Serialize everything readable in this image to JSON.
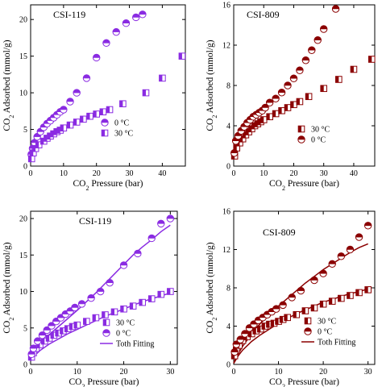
{
  "colors": {
    "purple": "#8A2BE2",
    "maroon": "#8B0000"
  },
  "chart_data": [
    {
      "type": "scatter",
      "title": "CSI-119",
      "xlabel": [
        "CO",
        "2",
        " Pressure (bar)"
      ],
      "ylabel": [
        "CO",
        "2",
        " Adsorbed (mmol/g)"
      ],
      "xlim": [
        0,
        47
      ],
      "ylim": [
        0,
        22
      ],
      "xticks": [
        0,
        10,
        20,
        30,
        40
      ],
      "yticks": [
        0,
        5,
        10,
        15,
        20
      ],
      "legend_position": "lower-right",
      "series": [
        {
          "name": "0 °C",
          "marker": "circle-half",
          "color": "#8A2BE2",
          "x": [
            0.2,
            0.6,
            1.2,
            2,
            3,
            4,
            5,
            6,
            7,
            8,
            9,
            10,
            12,
            14,
            17,
            20,
            23,
            26,
            29,
            32,
            34
          ],
          "y": [
            1.6,
            2.4,
            3.2,
            4.0,
            4.7,
            5.3,
            5.8,
            6.2,
            6.6,
            7.0,
            7.4,
            7.7,
            8.8,
            10.0,
            12.0,
            14.8,
            16.8,
            18.3,
            19.5,
            20.3,
            20.7
          ]
        },
        {
          "name": "30 °C",
          "marker": "square-half",
          "color": "#8A2BE2",
          "x": [
            0.3,
            0.8,
            1.5,
            2.5,
            4,
            5,
            6,
            7,
            8,
            9,
            10,
            12,
            14,
            16,
            18,
            20,
            22,
            24,
            28,
            35,
            40,
            46
          ],
          "y": [
            1.0,
            1.8,
            2.4,
            2.9,
            3.4,
            3.8,
            4.1,
            4.4,
            4.7,
            4.9,
            5.2,
            5.6,
            6.0,
            6.4,
            6.8,
            7.1,
            7.4,
            7.7,
            8.5,
            10.0,
            12.0,
            15.0
          ]
        }
      ]
    },
    {
      "type": "scatter",
      "title": "CSI-809",
      "xlabel": [
        "CO",
        "2",
        " Pressure (bar)"
      ],
      "ylabel": [
        "CO",
        "2",
        " Adsorbed (mmol/g)"
      ],
      "xlim": [
        0,
        47
      ],
      "ylim": [
        0,
        16
      ],
      "xticks": [
        0,
        10,
        20,
        30,
        40
      ],
      "yticks": [
        0,
        4,
        8,
        12,
        16
      ],
      "legend_position": "lower-right",
      "series": [
        {
          "name": "30 °C",
          "marker": "square-half",
          "color": "#8B0000",
          "x": [
            0.3,
            1,
            2,
            3,
            4,
            5,
            6,
            7,
            8,
            9,
            10,
            12,
            14,
            16,
            18,
            20,
            22,
            25,
            30,
            35,
            40,
            46
          ],
          "y": [
            1.0,
            1.8,
            2.3,
            2.7,
            3.1,
            3.4,
            3.7,
            4.0,
            4.2,
            4.4,
            4.6,
            4.9,
            5.2,
            5.5,
            5.8,
            6.1,
            6.4,
            6.9,
            7.7,
            8.6,
            9.6,
            10.6
          ]
        },
        {
          "name": "0 °C",
          "marker": "circle-half",
          "color": "#8B0000",
          "x": [
            0.2,
            0.7,
            1.5,
            2.5,
            3.5,
            4.5,
            5.5,
            6.5,
            7.5,
            8.5,
            9.5,
            10.5,
            12,
            14,
            16,
            18,
            20,
            22,
            24,
            26,
            28,
            30,
            34
          ],
          "y": [
            1.3,
            2.5,
            3.0,
            3.5,
            3.9,
            4.3,
            4.6,
            4.9,
            5.1,
            5.3,
            5.5,
            5.8,
            6.3,
            6.7,
            7.3,
            8.0,
            8.7,
            9.5,
            10.5,
            11.5,
            12.5,
            13.6,
            15.6
          ]
        }
      ]
    },
    {
      "type": "scatter",
      "title": "CSI-119",
      "xlabel": [
        "CO",
        "2",
        " Pressure (bar)"
      ],
      "ylabel": [
        "CO",
        "2",
        " Adsorbed (mmol/g)"
      ],
      "xlim": [
        0,
        31.5
      ],
      "ylim": [
        0,
        21
      ],
      "xticks": [
        0,
        10,
        20,
        30
      ],
      "yticks": [
        0,
        5,
        10,
        15,
        20
      ],
      "legend_position": "lower-right",
      "series": [
        {
          "name": "30 °C",
          "marker": "square-half",
          "color": "#8A2BE2",
          "x": [
            0.2,
            0.6,
            1.2,
            2,
            3,
            4,
            5,
            6,
            7,
            8,
            9,
            10,
            12,
            14,
            16,
            18,
            20,
            22,
            24,
            26,
            28,
            30
          ],
          "y": [
            1.0,
            1.6,
            2.2,
            2.7,
            3.2,
            3.6,
            4.0,
            4.3,
            4.6,
            4.9,
            5.2,
            5.4,
            5.9,
            6.4,
            6.8,
            7.2,
            7.6,
            8.0,
            8.5,
            9.0,
            9.6,
            10.0
          ]
        },
        {
          "name": "0 °C",
          "marker": "circle-half",
          "color": "#8A2BE2",
          "x": [
            0.2,
            0.6,
            1.5,
            2.5,
            3.5,
            4.5,
            5.5,
            6.5,
            7.5,
            8.5,
            9.5,
            11,
            13,
            15,
            17,
            20,
            23,
            26,
            28,
            30
          ],
          "y": [
            1.4,
            2.2,
            3.2,
            4.0,
            4.7,
            5.3,
            5.9,
            6.4,
            6.9,
            7.3,
            7.8,
            8.3,
            9.1,
            10.0,
            11.2,
            13.6,
            15.2,
            17.3,
            19.3,
            20.0
          ]
        }
      ],
      "fits": [
        {
          "name": "Toth Fitting",
          "color": "#8A2BE2",
          "x": [
            0,
            1,
            2,
            4,
            6,
            8,
            10,
            12,
            14,
            16,
            18,
            20,
            22,
            24,
            26,
            28,
            30
          ],
          "y": [
            0.8,
            1.9,
            2.8,
            4.1,
            5.2,
            6.3,
            7.4,
            8.6,
            9.8,
            11.1,
            12.4,
            13.7,
            15.0,
            16.1,
            17.1,
            18.2,
            19.1
          ]
        },
        {
          "name": "",
          "color": "#8A2BE2",
          "x": [
            0,
            1,
            2,
            4,
            6,
            8,
            10,
            12,
            14,
            16,
            18,
            20,
            22,
            24,
            26,
            28,
            30
          ],
          "y": [
            0.5,
            1.3,
            1.9,
            2.8,
            3.5,
            4.2,
            4.8,
            5.4,
            6.0,
            6.6,
            7.1,
            7.6,
            8.1,
            8.6,
            9.0,
            9.4,
            9.8
          ]
        }
      ]
    },
    {
      "type": "scatter",
      "title": "CSI-809",
      "xlabel": [
        "CO",
        "2",
        " Pressure (bar)"
      ],
      "ylabel": [
        "CO",
        "2",
        " Adsorbed (mmol/g)"
      ],
      "xlim": [
        0,
        31.5
      ],
      "ylim": [
        0,
        16
      ],
      "xticks": [
        0,
        10,
        20,
        30
      ],
      "yticks": [
        0,
        4,
        8,
        12,
        16
      ],
      "legend_position": "lower-right",
      "series": [
        {
          "name": "30 °C",
          "marker": "square-half",
          "color": "#8B0000",
          "x": [
            0.2,
            0.6,
            1.2,
            2,
            3,
            4,
            5,
            6,
            7,
            8,
            9,
            10,
            11,
            12,
            14,
            16,
            18,
            20,
            22,
            24,
            26,
            28,
            30
          ],
          "y": [
            0.9,
            1.5,
            2.0,
            2.5,
            2.9,
            3.2,
            3.5,
            3.7,
            4.0,
            4.2,
            4.3,
            4.5,
            4.7,
            4.9,
            5.2,
            5.6,
            5.9,
            6.3,
            6.6,
            6.9,
            7.2,
            7.5,
            7.8
          ]
        },
        {
          "name": "0 °C",
          "marker": "circle-half",
          "color": "#8B0000",
          "x": [
            0.2,
            0.6,
            1.5,
            2.5,
            3.5,
            4.5,
            5.5,
            6.5,
            7.5,
            8.5,
            9.5,
            11,
            13,
            15,
            18,
            20,
            22,
            24,
            26,
            28,
            30
          ],
          "y": [
            1.3,
            2.1,
            2.6,
            3.2,
            3.8,
            4.2,
            4.6,
            4.9,
            5.2,
            5.5,
            5.8,
            6.2,
            7.0,
            7.7,
            8.8,
            9.5,
            10.5,
            11.3,
            12.0,
            13.3,
            14.5
          ]
        }
      ],
      "fits": [
        {
          "name": "Toth Fitting",
          "color": "#8B0000",
          "x": [
            0,
            1,
            2,
            4,
            6,
            8,
            10,
            12,
            14,
            16,
            18,
            20,
            22,
            24,
            26,
            28,
            30
          ],
          "y": [
            0.2,
            1.1,
            1.9,
            3.2,
            4.3,
            5.2,
            6.1,
            6.9,
            7.7,
            8.5,
            9.2,
            9.9,
            10.5,
            11.1,
            11.7,
            12.2,
            12.6
          ]
        },
        {
          "name": "",
          "color": "#8B0000",
          "x": [
            0,
            1,
            2,
            4,
            6,
            8,
            10,
            12,
            14,
            16,
            18,
            20,
            22,
            24,
            26,
            28,
            30
          ],
          "y": [
            0.1,
            0.9,
            1.5,
            2.4,
            3.1,
            3.7,
            4.3,
            4.8,
            5.3,
            5.7,
            6.1,
            6.5,
            6.8,
            7.1,
            7.4,
            7.6,
            7.9
          ]
        }
      ]
    }
  ]
}
